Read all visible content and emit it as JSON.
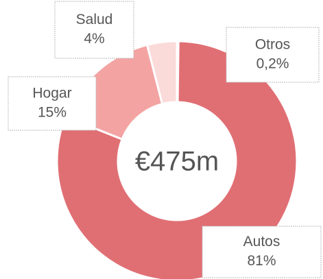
{
  "chart_data": {
    "type": "pie",
    "categories": [
      "Otros",
      "Autos",
      "Hogar",
      "Salud"
    ],
    "values": [
      0.2,
      81,
      15,
      4
    ],
    "value_labels": [
      "0,2%",
      "81%",
      "15%",
      "4%"
    ],
    "colors": [
      "#e06f74",
      "#e06f74",
      "#f4a3a3",
      "#fbdada"
    ],
    "center_label": "€475m"
  }
}
